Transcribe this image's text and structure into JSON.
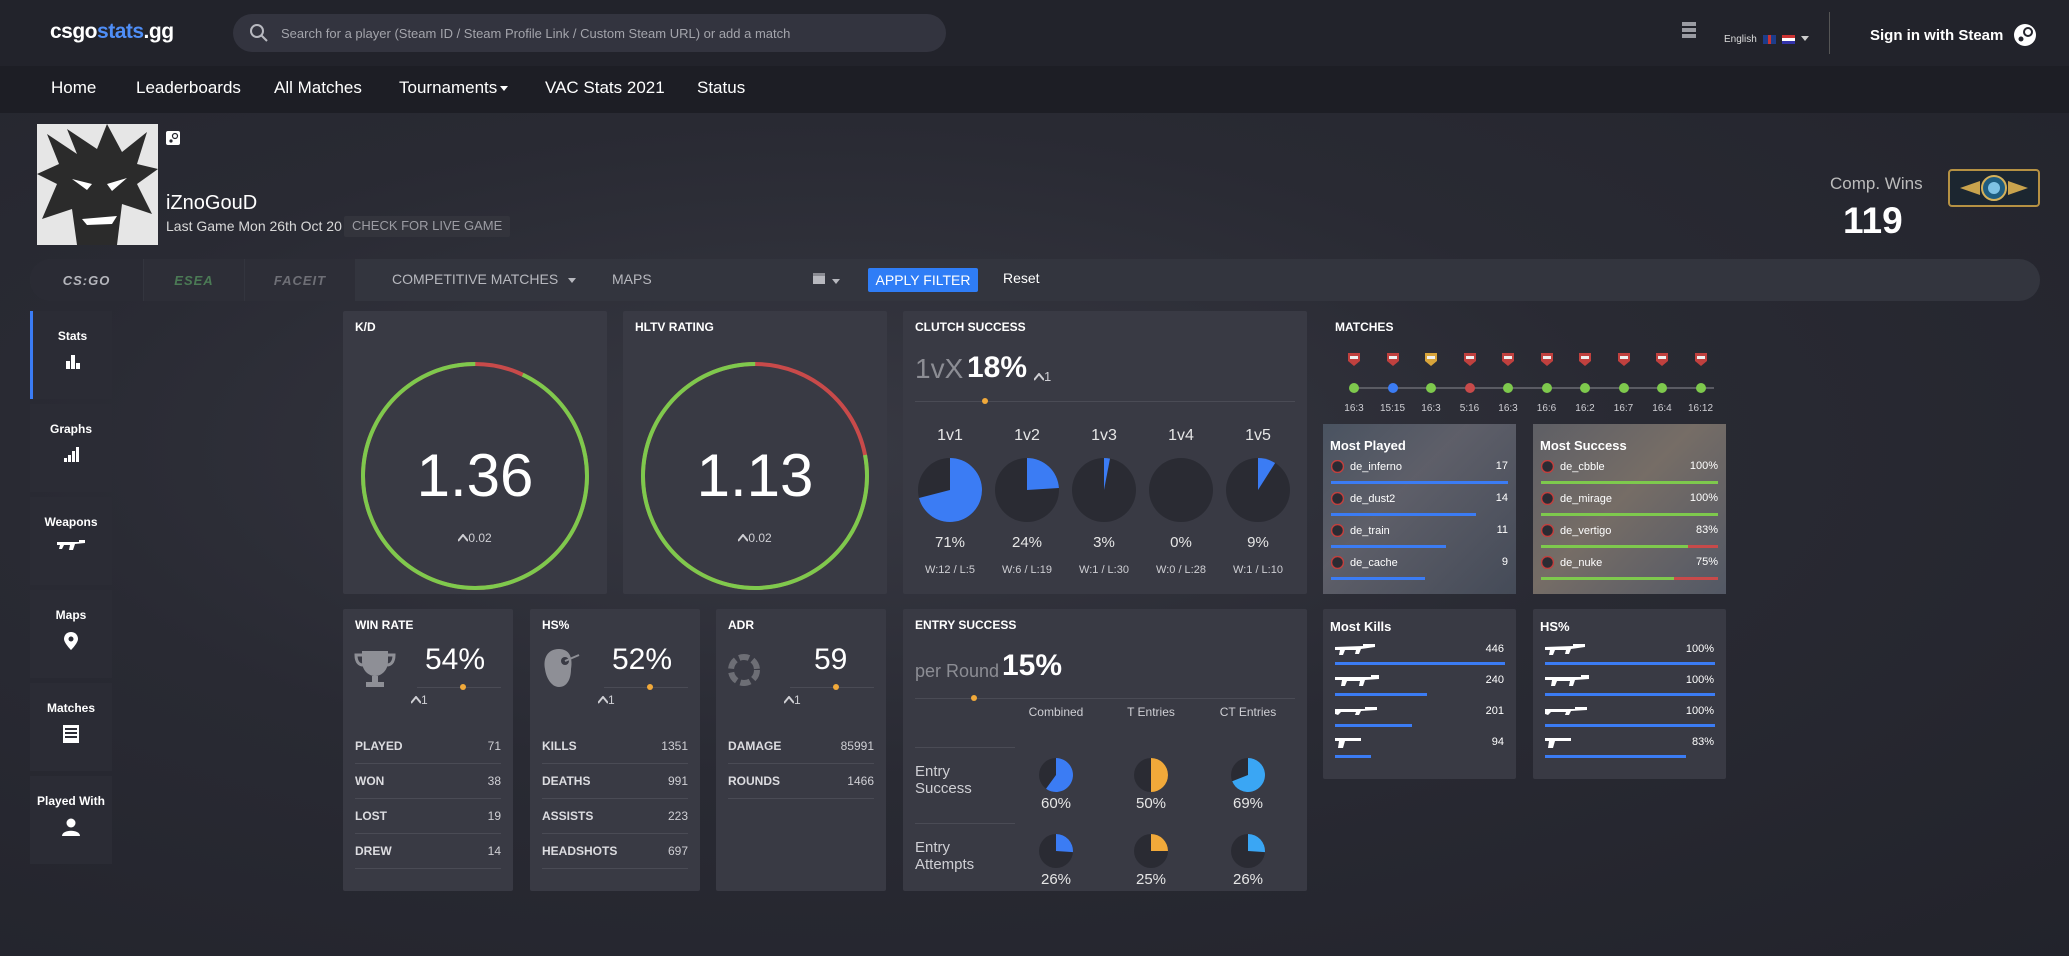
{
  "header": {
    "logo_a": "csgo",
    "logo_b": "stats",
    "logo_c": ".gg",
    "search_placeholder": "Search for a player (Steam ID / Steam Profile Link / Custom Steam URL) or add a match",
    "language": "English",
    "sign_in": "Sign in with Steam"
  },
  "nav": [
    "Home",
    "Leaderboards",
    "All Matches",
    "Tournaments",
    "VAC Stats 2021",
    "Status"
  ],
  "profile": {
    "name": "iZnoGouD",
    "last_game": "Last Game Mon 26th Oct 20",
    "live_game": "CHECK FOR LIVE GAME",
    "comp_wins_label": "Comp. Wins",
    "comp_wins": "119"
  },
  "filters": {
    "tab_csgo": "CS:GO",
    "tab_esea": "ESEA",
    "tab_faceit": "FACEIT",
    "match_type": "COMPETITIVE MATCHES",
    "maps": "MAPS",
    "apply": "APPLY FILTER",
    "reset": "Reset"
  },
  "sidebar": [
    "Stats",
    "Graphs",
    "Weapons",
    "Maps",
    "Matches",
    "Played With"
  ],
  "kd": {
    "title": "K/D",
    "value": "1.36",
    "delta": "0.02",
    "fraction": 0.93
  },
  "hltv": {
    "title": "HLTV RATING",
    "value": "1.13",
    "delta": "0.02",
    "fraction": 0.78
  },
  "clutch": {
    "title": "CLUTCH SUCCESS",
    "prefix": "1vX",
    "value": "18%",
    "delta": "1",
    "cols": [
      {
        "label": "1v1",
        "pct": "71%",
        "frac": 0.71,
        "wl": "W:12 / L:5"
      },
      {
        "label": "1v2",
        "pct": "24%",
        "frac": 0.24,
        "wl": "W:6 / L:19"
      },
      {
        "label": "1v3",
        "pct": "3%",
        "frac": 0.03,
        "wl": "W:1 / L:30"
      },
      {
        "label": "1v4",
        "pct": "0%",
        "frac": 0.0,
        "wl": "W:0 / L:28"
      },
      {
        "label": "1v5",
        "pct": "9%",
        "frac": 0.09,
        "wl": "W:1 / L:10"
      }
    ]
  },
  "matches": {
    "title": "MATCHES",
    "scores": [
      "16:3",
      "15:15",
      "16:3",
      "5:16",
      "16:3",
      "16:6",
      "16:2",
      "16:7",
      "16:4",
      "16:12"
    ],
    "results": [
      "win",
      "tie",
      "win",
      "loss",
      "win",
      "win",
      "win",
      "win",
      "win",
      "win"
    ]
  },
  "most_played": {
    "title": "Most Played",
    "rows": [
      {
        "map": "de_inferno",
        "value": "17",
        "frac": 1.0
      },
      {
        "map": "de_dust2",
        "value": "14",
        "frac": 0.82
      },
      {
        "map": "de_train",
        "value": "11",
        "frac": 0.65
      },
      {
        "map": "de_cache",
        "value": "9",
        "frac": 0.53
      }
    ]
  },
  "most_success": {
    "title": "Most Success",
    "rows": [
      {
        "map": "de_cbble",
        "value": "100%",
        "frac": 1.0
      },
      {
        "map": "de_mirage",
        "value": "100%",
        "frac": 1.0
      },
      {
        "map": "de_vertigo",
        "value": "83%",
        "frac": 0.83
      },
      {
        "map": "de_nuke",
        "value": "75%",
        "frac": 0.75
      }
    ]
  },
  "winrate": {
    "title": "WIN RATE",
    "value": "54%",
    "delta": "1",
    "stats": [
      [
        "PLAYED",
        "71"
      ],
      [
        "WON",
        "38"
      ],
      [
        "LOST",
        "19"
      ],
      [
        "DREW",
        "14"
      ]
    ]
  },
  "hs": {
    "title": "HS%",
    "value": "52%",
    "delta": "1",
    "stats": [
      [
        "KILLS",
        "1351"
      ],
      [
        "DEATHS",
        "991"
      ],
      [
        "ASSISTS",
        "223"
      ],
      [
        "HEADSHOTS",
        "697"
      ]
    ]
  },
  "adr": {
    "title": "ADR",
    "value": "59",
    "delta": "1",
    "stats": [
      [
        "DAMAGE",
        "85991"
      ],
      [
        "ROUNDS",
        "1466"
      ]
    ]
  },
  "entry": {
    "title": "ENTRY SUCCESS",
    "prefix": "per Round",
    "value": "15%",
    "col_labels": [
      "Combined",
      "T Entries",
      "CT Entries"
    ],
    "rows": [
      {
        "label_a": "Entry",
        "label_b": "Success",
        "vals": [
          "60%",
          "50%",
          "69%"
        ],
        "fracs": [
          0.6,
          0.5,
          0.69
        ]
      },
      {
        "label_a": "Entry",
        "label_b": "Attempts",
        "vals": [
          "26%",
          "25%",
          "26%"
        ],
        "fracs": [
          0.26,
          0.25,
          0.26
        ]
      }
    ],
    "colors": [
      "#3b7cf4",
      "#f1a93a",
      "#3aa6f4"
    ]
  },
  "most_kills": {
    "title": "Most Kills",
    "rows": [
      {
        "value": "446",
        "frac": 1.0
      },
      {
        "value": "240",
        "frac": 0.54
      },
      {
        "value": "201",
        "frac": 0.45
      },
      {
        "value": "94",
        "frac": 0.21
      }
    ]
  },
  "hs_weapons": {
    "title": "HS%",
    "rows": [
      {
        "value": "100%",
        "frac": 1.0
      },
      {
        "value": "100%",
        "frac": 1.0
      },
      {
        "value": "100%",
        "frac": 1.0
      },
      {
        "value": "83%",
        "frac": 0.83
      }
    ]
  },
  "colors": {
    "accent": "#3b7cf4",
    "green": "#7ec94d",
    "red": "#c84a4a",
    "orange": "#f1a93a",
    "pieDark": "#2a2b33"
  }
}
